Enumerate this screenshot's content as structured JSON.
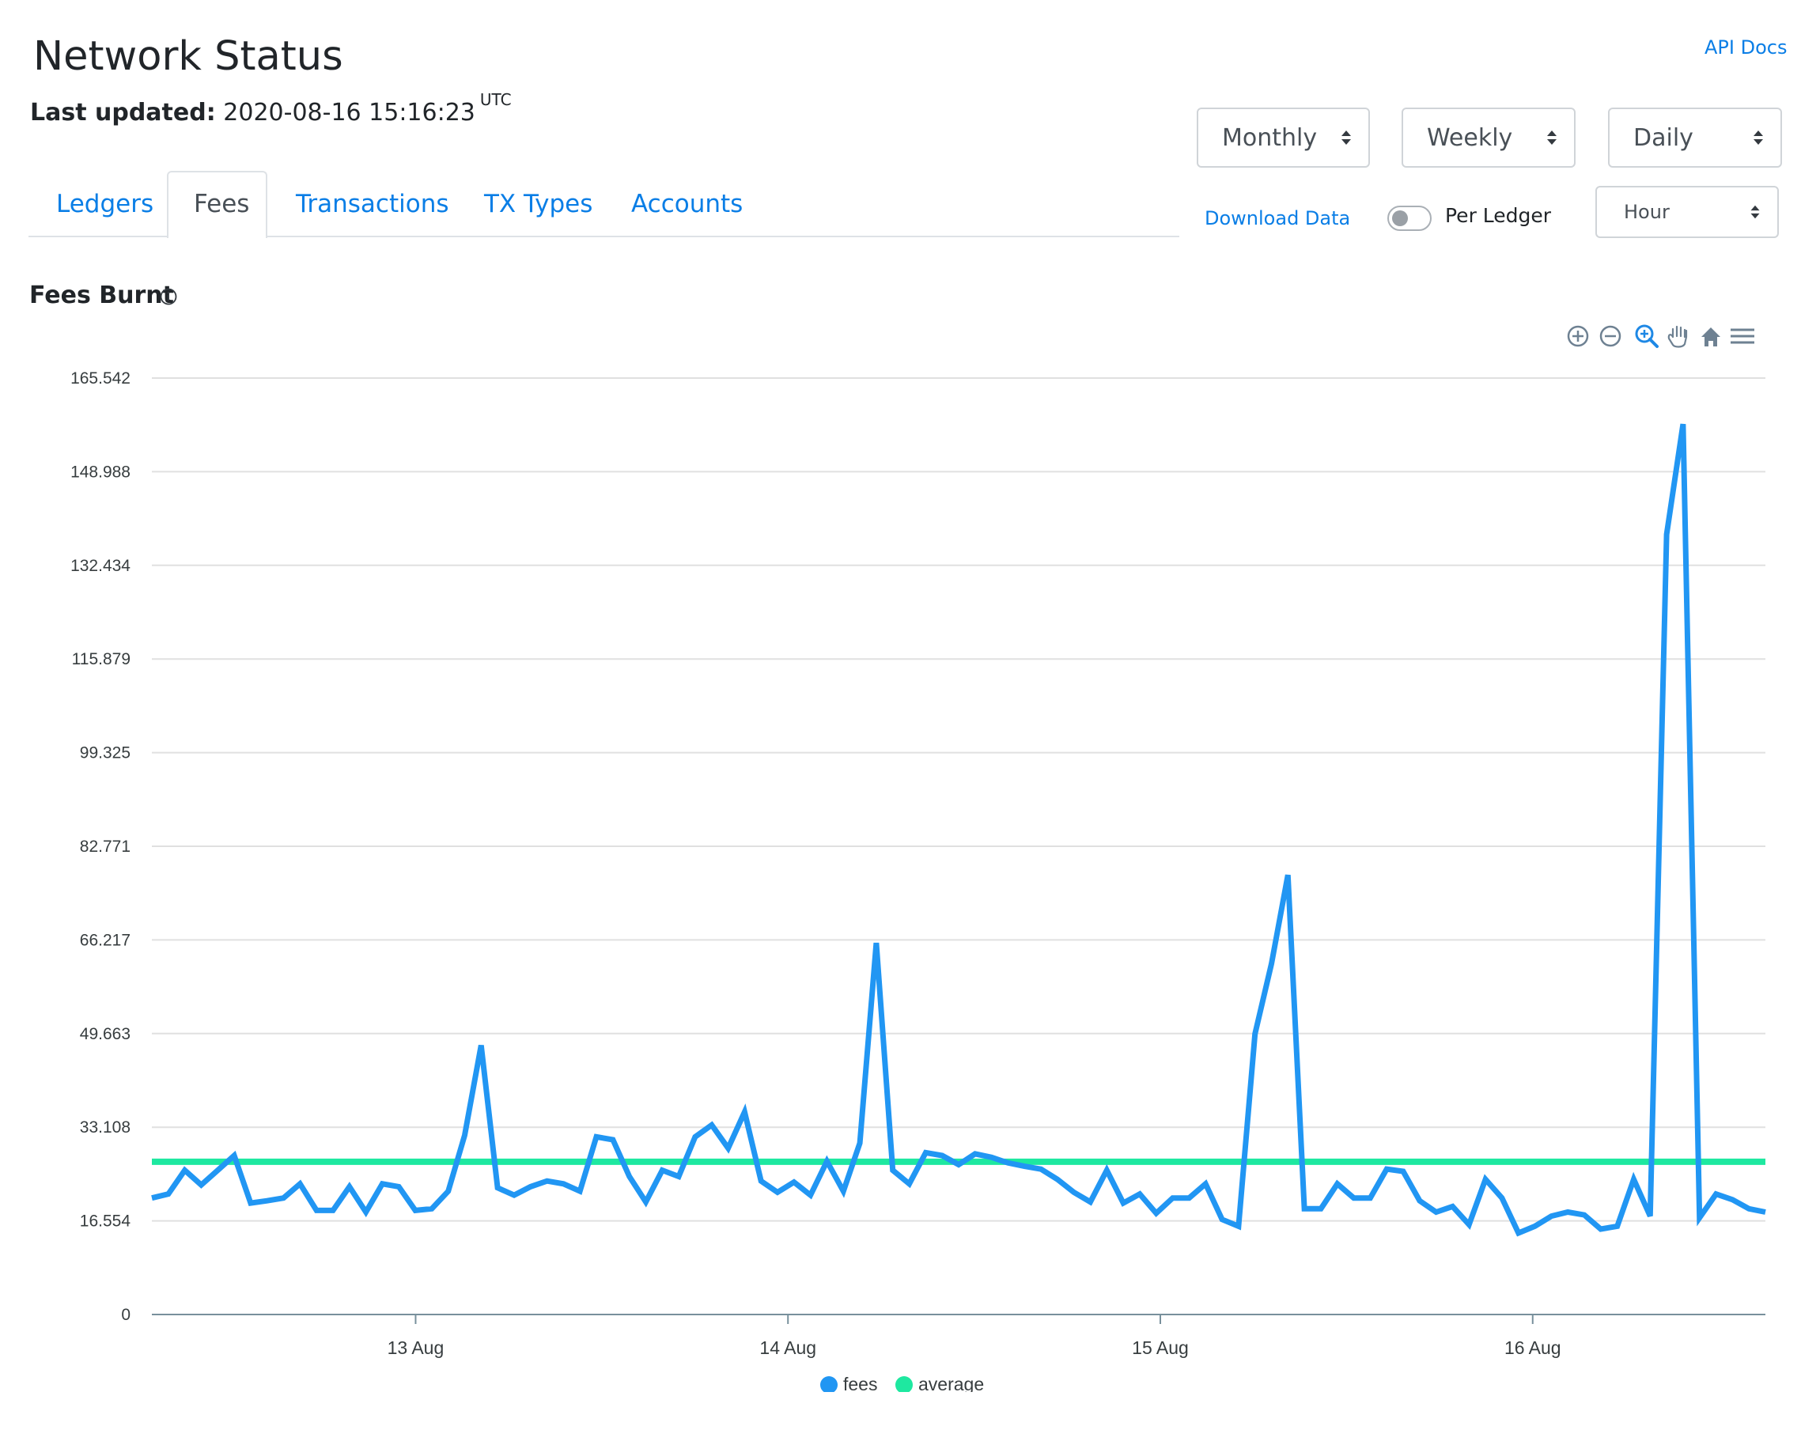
{
  "header": {
    "title": "Network Status",
    "last_updated_label": "Last updated",
    "last_updated_value": "2020-08-16 15:16:23",
    "timezone": "UTC",
    "api_docs": "API Docs"
  },
  "controls": {
    "monthly": "Monthly",
    "weekly": "Weekly",
    "daily": "Daily",
    "download": "Download Data",
    "per_ledger_label": "Per Ledger",
    "per_ledger_on": false,
    "interval": "Hour"
  },
  "tabs": [
    {
      "label": "Ledgers",
      "active": false
    },
    {
      "label": "Fees",
      "active": true
    },
    {
      "label": "Transactions",
      "active": false
    },
    {
      "label": "TX Types",
      "active": false
    },
    {
      "label": "Accounts",
      "active": false
    }
  ],
  "section": {
    "title": "Fees Burnt"
  },
  "toolbar_icons": [
    "zoom-in-icon",
    "zoom-out-icon",
    "selection-zoom-icon",
    "pan-icon",
    "reset-zoom-icon",
    "menu-icon"
  ],
  "colors": {
    "fees": "#2196f3",
    "average": "#1ee8a0",
    "link": "#0a7ee6"
  },
  "chart_data": {
    "type": "line",
    "title": "",
    "ylim": [
      0,
      165.542
    ],
    "yticks": [
      "165.542",
      "148.988",
      "132.434",
      "115.879",
      "99.325",
      "82.771",
      "66.217",
      "49.663",
      "33.108",
      "16.554",
      "0"
    ],
    "xticks": [
      {
        "label": "13 Aug",
        "day": 13
      },
      {
        "label": "14 Aug",
        "day": 14
      },
      {
        "label": "15 Aug",
        "day": 15
      },
      {
        "label": "16 Aug",
        "day": 16
      }
    ],
    "x_start": "2020-08-12 07:00 UTC",
    "x_end": "2020-08-16 15:00 UTC",
    "legend": [
      "fees",
      "average"
    ],
    "legend_position": "bottom",
    "series": [
      {
        "name": "fees",
        "values": [
          20.6,
          21.3,
          25.5,
          22.9,
          25.5,
          28.1,
          19.7,
          20.1,
          20.6,
          23.1,
          18.4,
          18.4,
          22.6,
          18.1,
          23.1,
          22.6,
          18.4,
          18.7,
          21.8,
          31.7,
          47.6,
          22.4,
          21.1,
          22.6,
          23.6,
          23.1,
          21.8,
          31.4,
          30.9,
          24.4,
          19.9,
          25.5,
          24.4,
          31.4,
          33.5,
          29.4,
          35.8,
          23.6,
          21.6,
          23.4,
          21.1,
          27.1,
          21.8,
          30.3,
          65.7,
          25.5,
          23.1,
          28.6,
          28.1,
          26.5,
          28.4,
          27.8,
          26.8,
          26.2,
          25.7,
          23.9,
          21.6,
          19.9,
          25.5,
          19.7,
          21.3,
          17.9,
          20.6,
          20.6,
          23.1,
          16.8,
          15.6,
          49.6,
          62.0,
          77.7,
          18.7,
          18.7,
          23.1,
          20.6,
          20.6,
          25.7,
          25.3,
          20.1,
          18.1,
          19.1,
          15.9,
          23.9,
          20.6,
          14.4,
          15.6,
          17.4,
          18.1,
          17.6,
          15.1,
          15.6,
          23.9,
          17.4,
          137.9,
          157.4,
          17.1,
          21.3,
          20.3,
          18.7,
          18.1
        ]
      },
      {
        "name": "average",
        "values": [
          27.0
        ]
      }
    ]
  }
}
